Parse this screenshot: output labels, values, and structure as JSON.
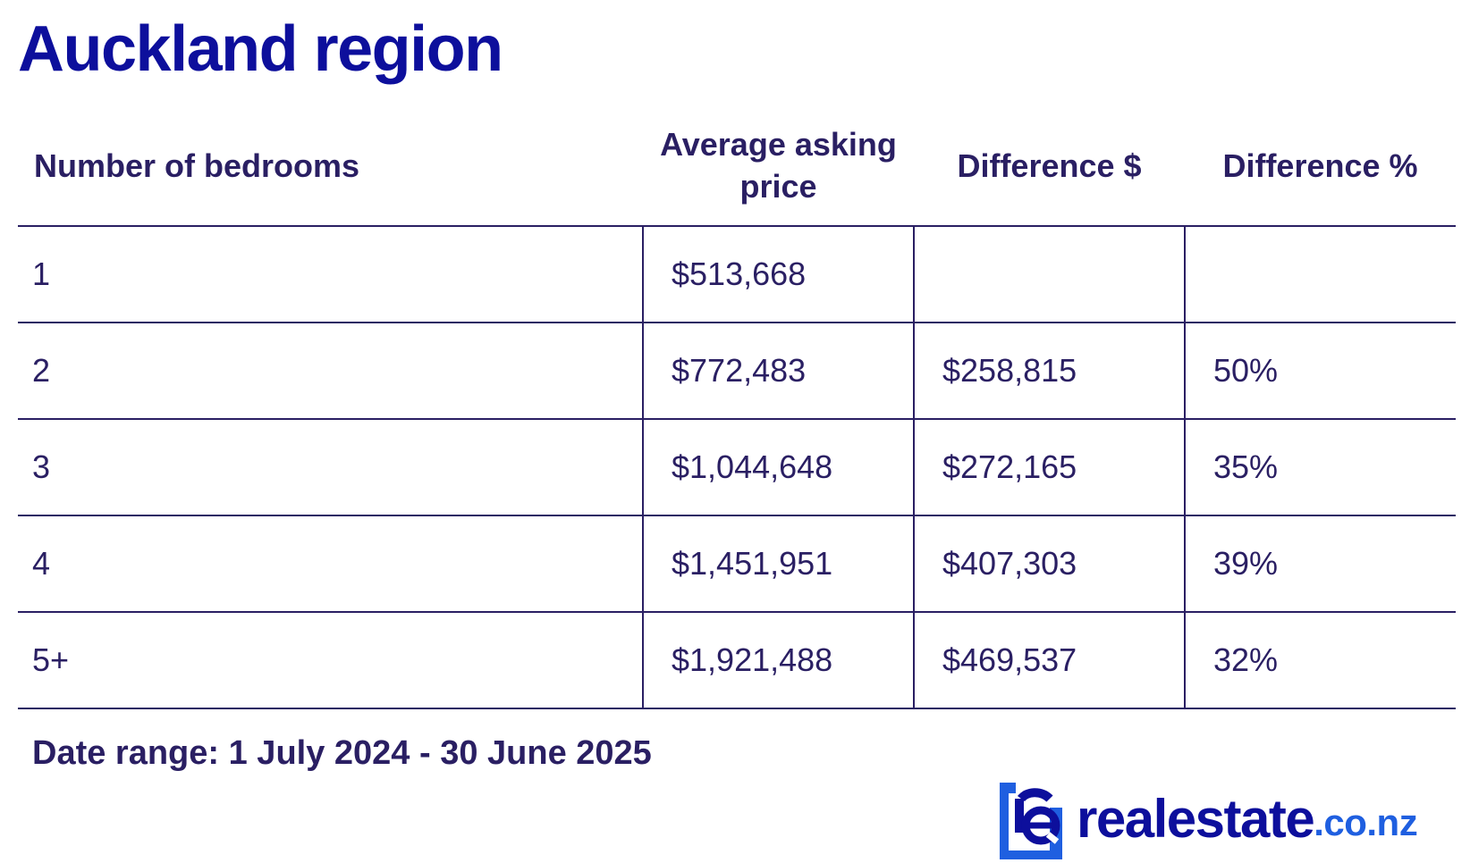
{
  "title": "Auckland region",
  "table": {
    "headers": [
      "Number of bedrooms",
      "Average asking price",
      "Difference $",
      "Difference %"
    ],
    "rows": [
      [
        "1",
        "$513,668",
        "",
        ""
      ],
      [
        "2",
        "$772,483",
        "$258,815",
        "50%"
      ],
      [
        "3",
        "$1,044,648",
        "$272,165",
        "35%"
      ],
      [
        "4",
        "$1,451,951",
        "$407,303",
        "39%"
      ],
      [
        "5+",
        "$1,921,488",
        "$469,537",
        "32%"
      ]
    ]
  },
  "footnote": "Date range: 1 July 2024 - 30 June 2025",
  "brand": {
    "logo_icon": "realestate-re-logo-icon",
    "name": "realestate",
    "tld": ".co.nz",
    "colors": {
      "primary": "#0d0f9c",
      "accent": "#1f5fe0",
      "text": "#2a1f63"
    }
  }
}
